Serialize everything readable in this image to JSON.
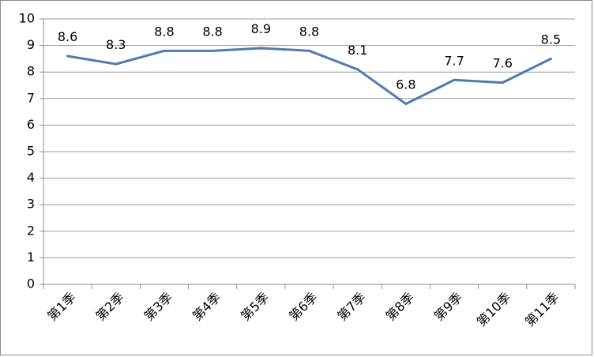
{
  "chart_data": {
    "type": "line",
    "title": "",
    "xlabel": "",
    "ylabel": "",
    "categories": [
      "第1季",
      "第2季",
      "第3季",
      "第4季",
      "第5季",
      "第6季",
      "第7季",
      "第8季",
      "第9季",
      "第10季",
      "第11季"
    ],
    "series": [
      {
        "values": [
          8.6,
          8.3,
          8.8,
          8.8,
          8.9,
          8.8,
          8.1,
          6.8,
          7.7,
          7.6,
          8.5
        ],
        "data_labels": [
          "8.6",
          "8.3",
          "8.8",
          "8.8",
          "8.9",
          "8.8",
          "8.1",
          "6.8",
          "7.7",
          "7.6",
          "8.5"
        ],
        "color": "#4f7bb0"
      }
    ],
    "ylim": [
      0,
      10
    ],
    "y_ticks": [
      "0",
      "1",
      "2",
      "3",
      "4",
      "5",
      "6",
      "7",
      "8",
      "9",
      "10"
    ],
    "grid": true,
    "legend": "none"
  }
}
